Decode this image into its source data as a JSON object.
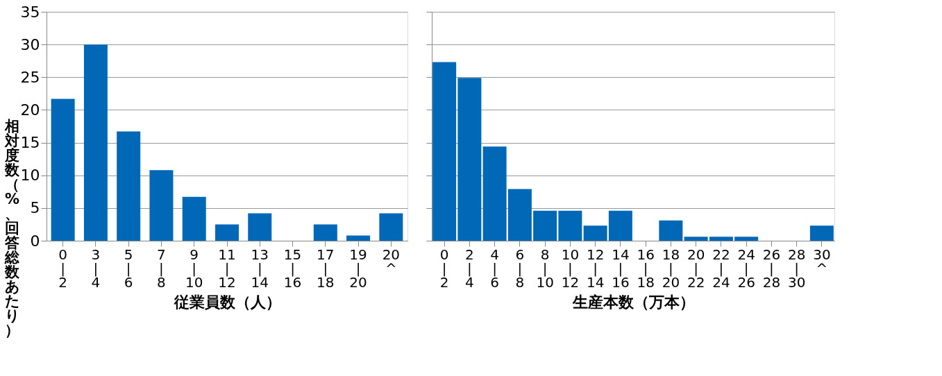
{
  "chart_data": [
    {
      "type": "bar",
      "ylabel": "相対度数（%、回答総数あたり）",
      "xlabel": "従業員数（人）",
      "categories": [
        "0\n|\n2",
        "3\n|\n4",
        "5\n|\n6",
        "7\n|\n8",
        "9\n|\n10",
        "11\n|\n12",
        "13\n|\n14",
        "15\n|\n16",
        "17\n|\n18",
        "19\n|\n20",
        "20\n^"
      ],
      "values": [
        21.7,
        30,
        16.7,
        10.8,
        6.7,
        2.5,
        4.2,
        0,
        2.5,
        0.8,
        4.2
      ],
      "color": "#0068b7",
      "ylim": [
        0,
        35
      ],
      "yticks": [
        0,
        5,
        10,
        15,
        20,
        25,
        30,
        35
      ],
      "grid": "y"
    },
    {
      "type": "bar",
      "xlabel": "生産本数（万本）",
      "categories": [
        "0\n|\n2",
        "2\n|\n4",
        "4\n|\n6",
        "6\n|\n8",
        "8\n|\n10",
        "10\n|\n12",
        "12\n|\n14",
        "14\n|\n16",
        "16\n|\n18",
        "18\n|\n20",
        "20\n|\n22",
        "22\n|\n24",
        "24\n|\n26",
        "26\n|\n28",
        "28\n|\n30",
        "30\n^"
      ],
      "values": [
        27.3,
        24.9,
        14.4,
        7.9,
        4.6,
        4.6,
        2.3,
        4.6,
        0,
        3.1,
        0.6,
        0.6,
        0.6,
        0,
        0,
        2.3
      ],
      "color": "#0068b7",
      "ylim": [
        0,
        35
      ],
      "yticks": [
        0,
        5,
        10,
        15,
        20,
        25,
        30,
        35
      ],
      "grid": "y",
      "tick_labels": "x"
    }
  ]
}
